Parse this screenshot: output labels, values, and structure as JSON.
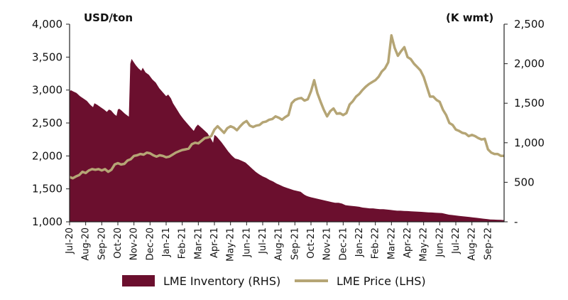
{
  "chart_data": {
    "type": "area+line",
    "left_axis": {
      "unit": "USD/ton",
      "ylim": [
        1000,
        4000
      ],
      "ticks": [
        "1,000",
        "1,500",
        "2,000",
        "2,500",
        "3,000",
        "3,500",
        "4,000"
      ]
    },
    "right_axis": {
      "unit": "(K wmt)",
      "ylim": [
        0,
        2500
      ],
      "ticks": [
        "-",
        "500",
        "1,000",
        "1,500",
        "2,000",
        "2,500"
      ]
    },
    "x_labels": [
      "Jul-20",
      "Aug-20",
      "Sep-20",
      "Oct-20",
      "Nov-20",
      "Dec-20",
      "Jan-21",
      "Feb-21",
      "Mar-21",
      "Apr-21",
      "May-21",
      "Jun-21",
      "Jul-21",
      "Aug-21",
      "Sep-21",
      "Oct-21",
      "Nov-21",
      "Dec-21",
      "Jan-22",
      "Feb-22",
      "Mar-22",
      "Apr-22",
      "May-22",
      "Jun-22",
      "Jul-22",
      "Aug-22",
      "Sep-22"
    ],
    "x_range": [
      0,
      27
    ],
    "legend": [
      "LME Inventory (RHS)",
      "LME Price (LHS)"
    ],
    "colors": {
      "inventory": "#6b0f2e",
      "price": "#b5a575",
      "axis": "#222222"
    },
    "inventory": {
      "name": "LME Inventory (RHS)",
      "axis": "right",
      "points": [
        [
          0,
          1650
        ],
        [
          0.2,
          1665
        ],
        [
          0.5,
          1650
        ],
        [
          1,
          1630
        ],
        [
          1.5,
          1590
        ],
        [
          2,
          1560
        ],
        [
          2.5,
          1530
        ],
        [
          3,
          1480
        ],
        [
          3.4,
          1450
        ],
        [
          3.6,
          1500
        ],
        [
          4,
          1480
        ],
        [
          4.5,
          1450
        ],
        [
          5,
          1420
        ],
        [
          5.4,
          1390
        ],
        [
          5.7,
          1420
        ],
        [
          6,
          1410
        ],
        [
          6.5,
          1360
        ],
        [
          6.8,
          1340
        ],
        [
          7,
          1420
        ],
        [
          7.2,
          1430
        ],
        [
          7.5,
          1410
        ],
        [
          8,
          1370
        ],
        [
          8.6,
          1330
        ],
        [
          8.8,
          2000
        ],
        [
          9,
          2060
        ],
        [
          9.3,
          2020
        ],
        [
          9.6,
          1980
        ],
        [
          10,
          1940
        ],
        [
          10.4,
          1910
        ],
        [
          10.6,
          1950
        ],
        [
          11,
          1890
        ],
        [
          11.5,
          1860
        ],
        [
          12,
          1800
        ],
        [
          12.5,
          1760
        ],
        [
          13,
          1690
        ],
        [
          13.5,
          1640
        ],
        [
          14,
          1590
        ],
        [
          14.3,
          1610
        ],
        [
          14.7,
          1560
        ],
        [
          15,
          1500
        ],
        [
          15.5,
          1430
        ],
        [
          16,
          1360
        ],
        [
          16.5,
          1300
        ],
        [
          17,
          1250
        ],
        [
          17.5,
          1200
        ],
        [
          18,
          1150
        ],
        [
          18.3,
          1200
        ],
        [
          18.6,
          1230
        ],
        [
          19,
          1200
        ],
        [
          19.5,
          1160
        ],
        [
          20,
          1120
        ],
        [
          20.5,
          1050
        ],
        [
          20.8,
          1000
        ],
        [
          21,
          1100
        ],
        [
          21.3,
          1080
        ],
        [
          21.6,
          1050
        ],
        [
          22,
          1010
        ],
        [
          22.5,
          950
        ],
        [
          23,
          890
        ],
        [
          23.5,
          840
        ],
        [
          24,
          800
        ],
        [
          24.5,
          790
        ],
        [
          25,
          770
        ],
        [
          25.5,
          750
        ],
        [
          26,
          710
        ],
        [
          26.5,
          670
        ],
        [
          27,
          630
        ],
        [
          27.5,
          600
        ],
        [
          28,
          575
        ],
        [
          28.5,
          555
        ],
        [
          29,
          530
        ],
        [
          29.5,
          510
        ],
        [
          30,
          485
        ],
        [
          30.5,
          465
        ],
        [
          31,
          445
        ],
        [
          31.5,
          430
        ],
        [
          32,
          415
        ],
        [
          32.5,
          400
        ],
        [
          33,
          390
        ],
        [
          33.5,
          380
        ],
        [
          34,
          345
        ],
        [
          34.3,
          330
        ],
        [
          34.6,
          320
        ],
        [
          35,
          310
        ],
        [
          35.5,
          300
        ],
        [
          36,
          290
        ],
        [
          36.5,
          280
        ],
        [
          37,
          270
        ],
        [
          37.5,
          260
        ],
        [
          38,
          250
        ],
        [
          38.5,
          240
        ],
        [
          39,
          240
        ],
        [
          39.5,
          230
        ],
        [
          40,
          210
        ],
        [
          40.5,
          205
        ],
        [
          41,
          200
        ],
        [
          41.5,
          195
        ],
        [
          42,
          190
        ],
        [
          42.5,
          180
        ],
        [
          43,
          175
        ],
        [
          43.5,
          170
        ],
        [
          44,
          170
        ],
        [
          44.5,
          165
        ],
        [
          45,
          160
        ],
        [
          45.5,
          160
        ],
        [
          46,
          155
        ],
        [
          46.5,
          150
        ],
        [
          47,
          145
        ],
        [
          47.5,
          140
        ],
        [
          48,
          140
        ],
        [
          48.5,
          138
        ],
        [
          49,
          136
        ],
        [
          49.5,
          133
        ],
        [
          50,
          130
        ],
        [
          50.5,
          128
        ],
        [
          51,
          126
        ],
        [
          51.5,
          122
        ],
        [
          52,
          120
        ],
        [
          52.5,
          118
        ],
        [
          53,
          115
        ],
        [
          53.5,
          112
        ],
        [
          54,
          110
        ],
        [
          54.5,
          100
        ],
        [
          55,
          90
        ],
        [
          55.5,
          85
        ],
        [
          56,
          80
        ],
        [
          56.5,
          75
        ],
        [
          57,
          70
        ],
        [
          57.5,
          65
        ],
        [
          58,
          60
        ],
        [
          58.5,
          55
        ],
        [
          59,
          50
        ],
        [
          59.5,
          45
        ],
        [
          60,
          40
        ],
        [
          60.5,
          35
        ],
        [
          61,
          30
        ],
        [
          61.5,
          28
        ],
        [
          62,
          26
        ],
        [
          62.5,
          24
        ],
        [
          63,
          22
        ]
      ]
    },
    "price": {
      "name": "LME Price (LHS)",
      "axis": "left",
      "points": [
        [
          0,
          1680
        ],
        [
          0.2,
          1660
        ],
        [
          0.4,
          1690
        ],
        [
          0.6,
          1710
        ],
        [
          0.8,
          1760
        ],
        [
          1,
          1740
        ],
        [
          1.2,
          1780
        ],
        [
          1.4,
          1800
        ],
        [
          1.6,
          1790
        ],
        [
          1.8,
          1800
        ],
        [
          2,
          1780
        ],
        [
          2.2,
          1800
        ],
        [
          2.4,
          1760
        ],
        [
          2.6,
          1790
        ],
        [
          2.8,
          1870
        ],
        [
          3,
          1890
        ],
        [
          3.2,
          1870
        ],
        [
          3.4,
          1880
        ],
        [
          3.6,
          1930
        ],
        [
          3.8,
          1950
        ],
        [
          4,
          2000
        ],
        [
          4.2,
          2010
        ],
        [
          4.4,
          2030
        ],
        [
          4.6,
          2020
        ],
        [
          4.8,
          2050
        ],
        [
          5,
          2040
        ],
        [
          5.2,
          2010
        ],
        [
          5.4,
          1990
        ],
        [
          5.6,
          2010
        ],
        [
          5.8,
          2000
        ],
        [
          6,
          1980
        ],
        [
          6.2,
          1990
        ],
        [
          6.4,
          2020
        ],
        [
          6.6,
          2050
        ],
        [
          6.8,
          2070
        ],
        [
          7,
          2090
        ],
        [
          7.2,
          2100
        ],
        [
          7.4,
          2110
        ],
        [
          7.6,
          2180
        ],
        [
          7.8,
          2200
        ],
        [
          8,
          2190
        ],
        [
          8.2,
          2230
        ],
        [
          8.4,
          2270
        ],
        [
          8.6,
          2280
        ],
        [
          8.8,
          2300
        ],
        [
          9,
          2400
        ],
        [
          9.2,
          2450
        ],
        [
          9.4,
          2400
        ],
        [
          9.6,
          2350
        ],
        [
          9.8,
          2420
        ],
        [
          10,
          2450
        ],
        [
          10.2,
          2430
        ],
        [
          10.4,
          2390
        ],
        [
          10.6,
          2450
        ],
        [
          10.8,
          2500
        ],
        [
          11,
          2530
        ],
        [
          11.2,
          2460
        ],
        [
          11.4,
          2440
        ],
        [
          11.6,
          2460
        ],
        [
          11.8,
          2470
        ],
        [
          12,
          2510
        ],
        [
          12.2,
          2520
        ],
        [
          12.4,
          2550
        ],
        [
          12.6,
          2560
        ],
        [
          12.8,
          2600
        ],
        [
          13,
          2580
        ],
        [
          13.2,
          2550
        ],
        [
          13.4,
          2590
        ],
        [
          13.6,
          2620
        ],
        [
          13.8,
          2800
        ],
        [
          14,
          2850
        ],
        [
          14.2,
          2870
        ],
        [
          14.4,
          2880
        ],
        [
          14.6,
          2840
        ],
        [
          14.8,
          2860
        ],
        [
          15,
          2980
        ],
        [
          15.2,
          3150
        ],
        [
          15.4,
          2950
        ],
        [
          15.6,
          2820
        ],
        [
          15.8,
          2700
        ],
        [
          16,
          2600
        ],
        [
          16.2,
          2680
        ],
        [
          16.4,
          2720
        ],
        [
          16.6,
          2640
        ],
        [
          16.8,
          2650
        ],
        [
          17,
          2620
        ],
        [
          17.2,
          2650
        ],
        [
          17.4,
          2780
        ],
        [
          17.6,
          2830
        ],
        [
          17.8,
          2900
        ],
        [
          18,
          2940
        ],
        [
          18.2,
          3000
        ],
        [
          18.4,
          3050
        ],
        [
          18.6,
          3090
        ],
        [
          18.8,
          3120
        ],
        [
          19,
          3150
        ],
        [
          19.2,
          3200
        ],
        [
          19.4,
          3280
        ],
        [
          19.6,
          3330
        ],
        [
          19.8,
          3420
        ],
        [
          20,
          3830
        ],
        [
          20.2,
          3640
        ],
        [
          20.4,
          3520
        ],
        [
          20.6,
          3590
        ],
        [
          20.8,
          3650
        ],
        [
          21,
          3500
        ],
        [
          21.2,
          3470
        ],
        [
          21.4,
          3400
        ],
        [
          21.6,
          3350
        ],
        [
          21.8,
          3300
        ],
        [
          22,
          3200
        ],
        [
          22.2,
          3050
        ],
        [
          22.4,
          2900
        ],
        [
          22.6,
          2900
        ],
        [
          22.8,
          2850
        ],
        [
          23,
          2820
        ],
        [
          23.2,
          2700
        ],
        [
          23.4,
          2620
        ],
        [
          23.6,
          2500
        ],
        [
          23.8,
          2470
        ],
        [
          24,
          2400
        ],
        [
          24.2,
          2380
        ],
        [
          24.4,
          2350
        ],
        [
          24.6,
          2340
        ],
        [
          24.8,
          2300
        ],
        [
          25,
          2320
        ],
        [
          25.2,
          2300
        ],
        [
          25.4,
          2270
        ],
        [
          25.6,
          2250
        ],
        [
          25.8,
          2260
        ],
        [
          26,
          2100
        ],
        [
          26.2,
          2050
        ],
        [
          26.4,
          2030
        ],
        [
          26.6,
          2030
        ],
        [
          26.8,
          2000
        ],
        [
          27,
          2000
        ]
      ]
    }
  }
}
